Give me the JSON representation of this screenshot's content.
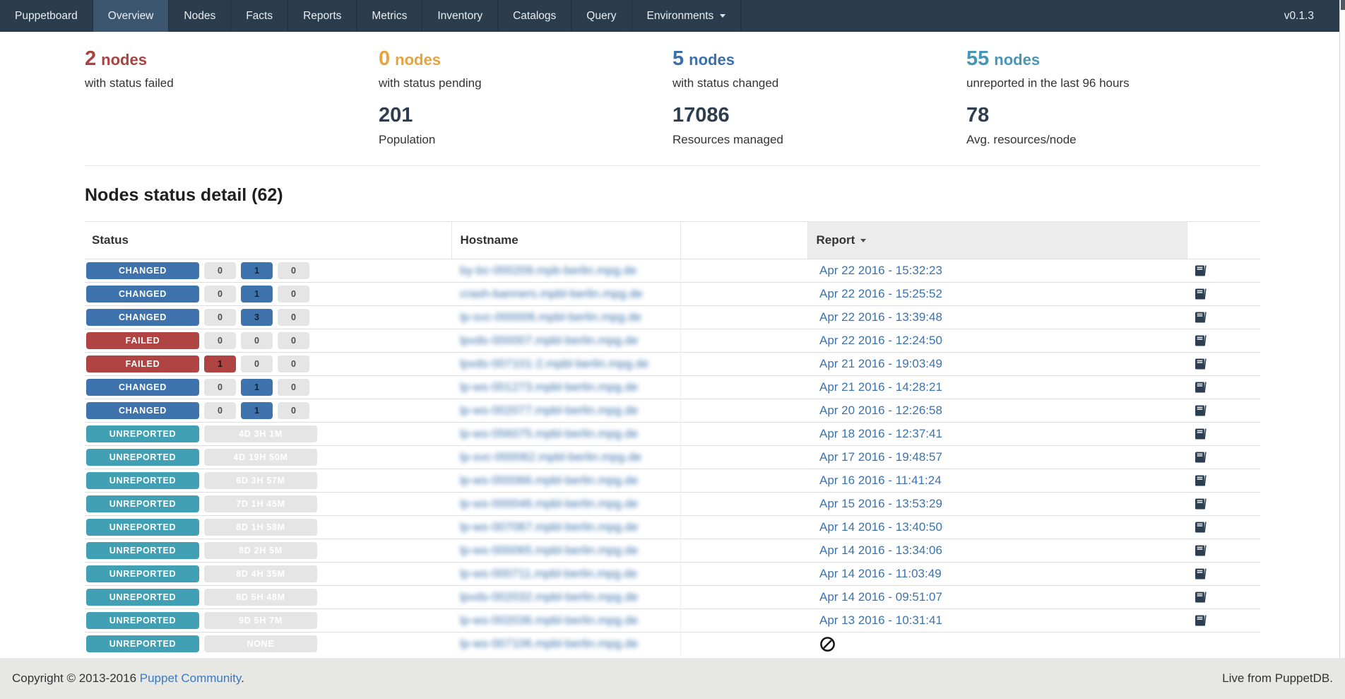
{
  "navbar": {
    "brand": "Puppetboard",
    "active": "Overview",
    "items": [
      {
        "label": "Overview"
      },
      {
        "label": "Nodes"
      },
      {
        "label": "Facts"
      },
      {
        "label": "Reports"
      },
      {
        "label": "Metrics"
      },
      {
        "label": "Inventory"
      },
      {
        "label": "Catalogs"
      },
      {
        "label": "Query"
      },
      {
        "label": "Environments",
        "dropdown": true
      }
    ],
    "version": "v0.1.3"
  },
  "stats": {
    "top": [
      {
        "value": "2",
        "suffix": "nodes",
        "label": "with status failed",
        "color": "#a8433f"
      },
      {
        "value": "0",
        "suffix": "nodes",
        "label": "with status pending",
        "color": "#e7a33d"
      },
      {
        "value": "5",
        "suffix": "nodes",
        "label": "with status changed",
        "color": "#3a70ad"
      },
      {
        "value": "55",
        "suffix": "nodes",
        "label": "unreported in the last 96 hours",
        "color": "#4697b6"
      }
    ],
    "bottom": [
      {
        "value": "201",
        "label": "Population"
      },
      {
        "value": "17086",
        "label": "Resources managed"
      },
      {
        "value": "78",
        "label": "Avg. resources/node"
      }
    ]
  },
  "table": {
    "title": "Nodes status detail (62)",
    "columns": [
      {
        "label": "Status",
        "sorted": false
      },
      {
        "label": "Hostname",
        "sorted": false
      },
      {
        "label": "",
        "sorted": false
      },
      {
        "label": "Report",
        "sorted": true
      },
      {
        "label": "",
        "sorted": false
      }
    ],
    "rows": [
      {
        "status": "CHANGED",
        "counts": [
          {
            "v": "0",
            "c": "gray"
          },
          {
            "v": "1",
            "c": "blue"
          },
          {
            "v": "0",
            "c": "gray"
          }
        ],
        "hostname": "by-bc-000209.mpb-berlin.mpg.de",
        "report": "Apr 22 2016 - 15:32:23"
      },
      {
        "status": "CHANGED",
        "counts": [
          {
            "v": "0",
            "c": "gray"
          },
          {
            "v": "1",
            "c": "blue"
          },
          {
            "v": "0",
            "c": "gray"
          }
        ],
        "hostname": "crash-banners.mpbl-berlin.mpg.de",
        "report": "Apr 22 2016 - 15:25:52"
      },
      {
        "status": "CHANGED",
        "counts": [
          {
            "v": "0",
            "c": "gray"
          },
          {
            "v": "3",
            "c": "blue"
          },
          {
            "v": "0",
            "c": "gray"
          }
        ],
        "hostname": "lp-svc-000006.mpbl-berlin.mpg.de",
        "report": "Apr 22 2016 - 13:39:48"
      },
      {
        "status": "FAILED",
        "counts": [
          {
            "v": "0",
            "c": "gray"
          },
          {
            "v": "0",
            "c": "gray"
          },
          {
            "v": "0",
            "c": "gray"
          }
        ],
        "hostname": "lpvds-000007.mpbl-berlin.mpg.de",
        "report": "Apr 22 2016 - 12:24:50"
      },
      {
        "status": "FAILED",
        "counts": [
          {
            "v": "1",
            "c": "red"
          },
          {
            "v": "0",
            "c": "gray"
          },
          {
            "v": "0",
            "c": "gray"
          }
        ],
        "hostname": "lpvds-007101-2.mpbl-berlin.mpg.de",
        "report": "Apr 21 2016 - 19:03:49"
      },
      {
        "status": "CHANGED",
        "counts": [
          {
            "v": "0",
            "c": "gray"
          },
          {
            "v": "1",
            "c": "blue"
          },
          {
            "v": "0",
            "c": "gray"
          }
        ],
        "hostname": "lp-ws-001273.mpbl-berlin.mpg.de",
        "report": "Apr 21 2016 - 14:28:21"
      },
      {
        "status": "CHANGED",
        "counts": [
          {
            "v": "0",
            "c": "gray"
          },
          {
            "v": "1",
            "c": "blue"
          },
          {
            "v": "0",
            "c": "gray"
          }
        ],
        "hostname": "lp-ws-002077.mpbl-berlin.mpg.de",
        "report": "Apr 20 2016 - 12:26:58"
      },
      {
        "status": "UNREPORTED",
        "time": "4D 3H 1M",
        "hostname": "lp-ws-056075.mpbl-berlin.mpg.de",
        "report": "Apr 18 2016 - 12:37:41"
      },
      {
        "status": "UNREPORTED",
        "time": "4D 19H 50M",
        "hostname": "lp-svc-000062.mpbl-berlin.mpg.de",
        "report": "Apr 17 2016 - 19:48:57"
      },
      {
        "status": "UNREPORTED",
        "time": "6D 3H 57M",
        "hostname": "lp-ws-000066.mpbl-berlin.mpg.de",
        "report": "Apr 16 2016 - 11:41:24"
      },
      {
        "status": "UNREPORTED",
        "time": "7D 1H 45M",
        "hostname": "lp-ws-000046.mpbl-berlin.mpg.de",
        "report": "Apr 15 2016 - 13:53:29"
      },
      {
        "status": "UNREPORTED",
        "time": "8D 1H 58M",
        "hostname": "lp-ws-007087.mpbl-berlin.mpg.de",
        "report": "Apr 14 2016 - 13:40:50"
      },
      {
        "status": "UNREPORTED",
        "time": "8D 2H 5M",
        "hostname": "lp-ws-000065.mpbl-berlin.mpg.de",
        "report": "Apr 14 2016 - 13:34:06"
      },
      {
        "status": "UNREPORTED",
        "time": "8D 4H 35M",
        "hostname": "lp-ws-000711.mpbl-berlin.mpg.de",
        "report": "Apr 14 2016 - 11:03:49"
      },
      {
        "status": "UNREPORTED",
        "time": "8D 5H 48M",
        "hostname": "lpvds-002032.mpbl-berlin.mpg.de",
        "report": "Apr 14 2016 - 09:51:07"
      },
      {
        "status": "UNREPORTED",
        "time": "9D 5H 7M",
        "hostname": "lp-ws-002036.mpbl-berlin.mpg.de",
        "report": "Apr 13 2016 - 10:31:41"
      },
      {
        "status": "UNREPORTED",
        "time": "NONE",
        "hostname": "lp-ws-007106.mpbl-berlin.mpg.de",
        "report": null
      }
    ],
    "hostnames_redacted": true
  },
  "footer": {
    "copyright_prefix": "Copyright © 2013-2016",
    "copyright_link": "Puppet Community",
    "copyright_suffix": ".",
    "live": "Live from PuppetDB."
  },
  "colors": {
    "navbar_bg": "#2b3c4d",
    "navbar_active_bg": "#3d5670",
    "status_changed": "#3e73ad",
    "status_failed": "#af4442",
    "status_unreported": "#41a0b4",
    "badge_gray": "#e5e5e5",
    "link_blue": "#3b73ad",
    "footer_bg": "#e7e7e4"
  }
}
